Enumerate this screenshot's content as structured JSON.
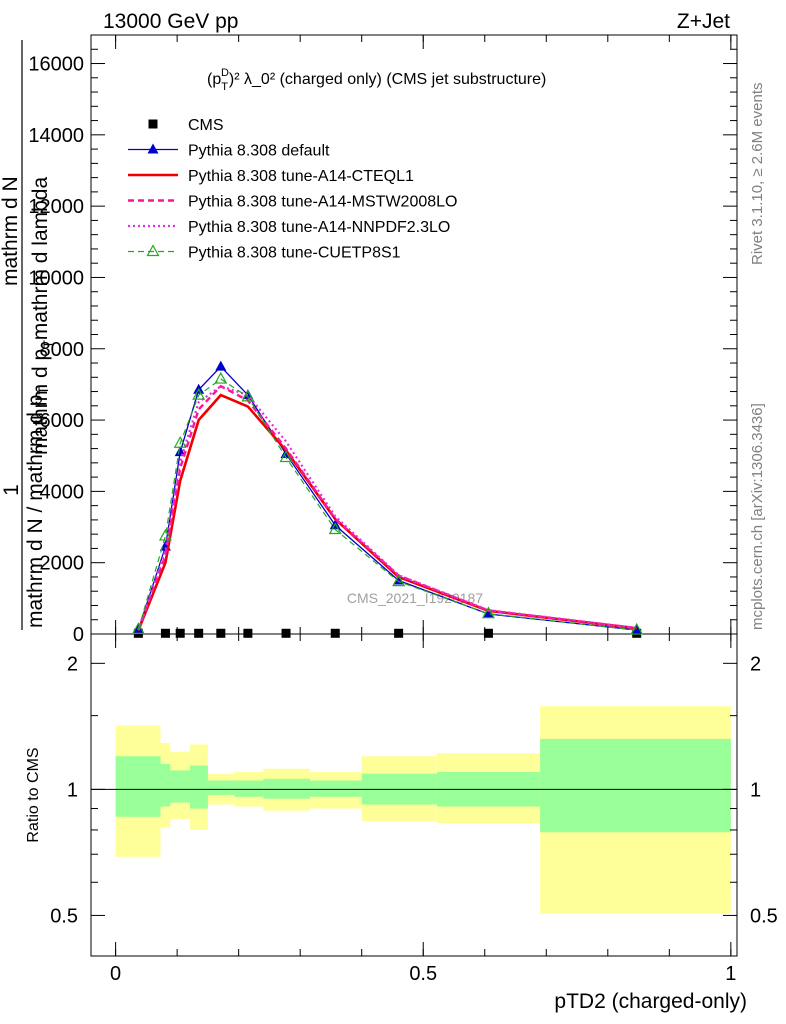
{
  "header": {
    "left": "13000 GeV pp",
    "right": "Z+Jet"
  },
  "plot_title": {
    "prefix": "(p",
    "sup_d": "D",
    "sub_t": "T",
    "rest": ")² λ_0² (charged only) (CMS jet substructure)"
  },
  "side": {
    "rivet": "Rivet 3.1.10, ≥ 2.6M events",
    "mcplots": "mcplots.cern.ch [arXiv:1306.3436]"
  },
  "watermark": "CMS_2021_I1920187",
  "y_title_parts": {
    "one": "1",
    "den": "mathrm d N / mathrm d p",
    "num1": "mathrm d",
    "num2": "N",
    "num3": "mathrm d p",
    "num4": "mathrm d lambda",
    "sub_t": "T"
  },
  "ratio_ylabel": "Ratio to CMS",
  "xlabel": "pTD2 (charged-only)",
  "chart_data": {
    "type": "line",
    "main": {
      "xlim": [
        -0.04,
        1.01
      ],
      "ylim": [
        0,
        16800
      ],
      "yticks": [
        0,
        2000,
        4000,
        6000,
        8000,
        10000,
        12000,
        14000,
        16000
      ],
      "ytick_labels": [
        "0",
        "2000",
        "4000",
        "6000",
        "8000",
        "10000",
        "12000",
        "14000",
        "16000"
      ]
    },
    "ratio": {
      "ylim": [
        0.4,
        2.35
      ],
      "log": true,
      "yticks": [
        0.5,
        1,
        2
      ],
      "ytick_labels": [
        "0.5",
        "1",
        "2"
      ]
    },
    "xticks": [
      0,
      0.5,
      1
    ],
    "xtick_labels": [
      "0",
      "0.5",
      "1"
    ],
    "x": [
      0.037,
      0.081,
      0.105,
      0.135,
      0.171,
      0.215,
      0.277,
      0.357,
      0.46,
      0.606,
      0.847
    ],
    "bin_edges": [
      0.0,
      0.073,
      0.089,
      0.121,
      0.15,
      0.193,
      0.24,
      0.316,
      0.4,
      0.522,
      0.69,
      1.0
    ],
    "series": [
      {
        "name": "CMS",
        "color": "#000000",
        "marker": "square",
        "line": "none",
        "values": [
          20,
          20,
          20,
          20,
          20,
          20,
          20,
          20,
          20,
          20,
          20
        ]
      },
      {
        "name": "Pythia 8.308 default",
        "color": "#0000cc",
        "marker": "triangle-filled",
        "line": "solid",
        "width": 1.3,
        "values": [
          120,
          2450,
          5100,
          6850,
          7500,
          6700,
          5050,
          3050,
          1500,
          560,
          110
        ]
      },
      {
        "name": "Pythia 8.308 tune-A14-CTEQL1",
        "color": "#ee0000",
        "marker": "none",
        "line": "solid",
        "width": 2.6,
        "values": [
          100,
          2000,
          4300,
          6000,
          6700,
          6380,
          5150,
          3220,
          1600,
          650,
          160
        ]
      },
      {
        "name": "Pythia 8.308 tune-A14-MSTW2008LO",
        "color": "#ff1493",
        "marker": "none",
        "line": "dashed",
        "width": 2.4,
        "values": [
          110,
          2200,
          4650,
          6300,
          6950,
          6550,
          5200,
          3230,
          1640,
          660,
          165
        ]
      },
      {
        "name": "Pythia 8.308 tune-A14-NNPDF2.3LO",
        "color": "#e030e0",
        "marker": "none",
        "line": "dotted",
        "width": 2.2,
        "values": [
          115,
          2350,
          4850,
          6500,
          6950,
          6700,
          5400,
          3300,
          1650,
          670,
          170
        ]
      },
      {
        "name": "Pythia 8.308 tune-CUETP8S1",
        "color": "#22aa22",
        "marker": "triangle-open",
        "line": "dashed",
        "width": 1.2,
        "values": [
          130,
          2750,
          5350,
          6700,
          7150,
          6650,
          4950,
          2930,
          1470,
          570,
          110
        ]
      }
    ],
    "band_stat_sys": {
      "lo": [
        0.69,
        0.81,
        0.85,
        0.8,
        0.92,
        0.91,
        0.89,
        0.9,
        0.84,
        0.83,
        0.505
      ],
      "hi": [
        1.42,
        1.29,
        1.23,
        1.28,
        1.09,
        1.1,
        1.12,
        1.1,
        1.2,
        1.22,
        1.58
      ]
    },
    "band_stat": {
      "lo": [
        0.86,
        0.91,
        0.93,
        0.9,
        0.97,
        0.96,
        0.95,
        0.96,
        0.92,
        0.91,
        0.79
      ],
      "hi": [
        1.2,
        1.15,
        1.11,
        1.14,
        1.05,
        1.05,
        1.06,
        1.05,
        1.09,
        1.1,
        1.32
      ]
    },
    "colors": {
      "band_outer": "#ffff99",
      "band_inner": "#99ff99",
      "watermark": "#a0a0a0"
    }
  }
}
